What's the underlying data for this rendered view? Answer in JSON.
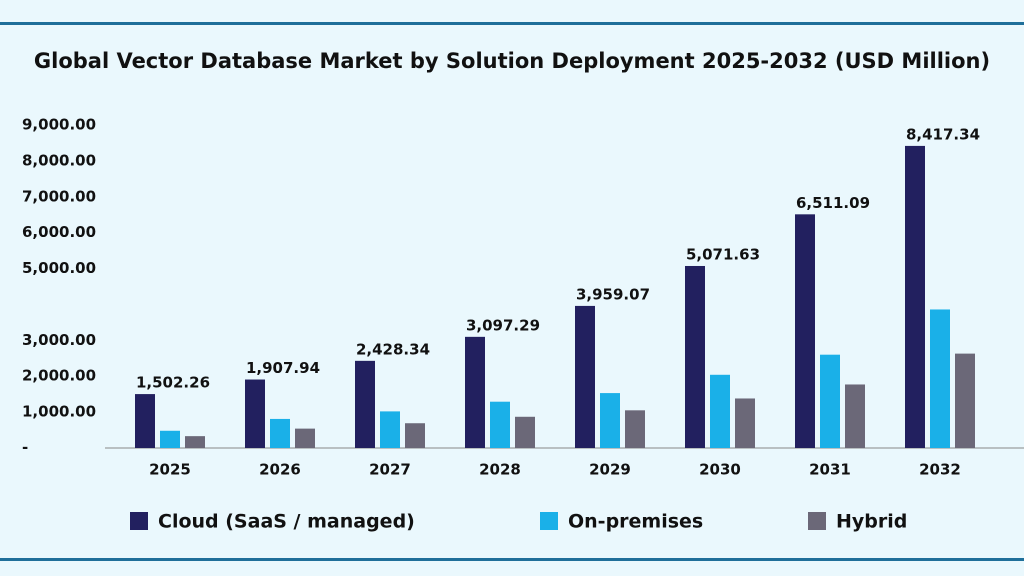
{
  "chart_data": {
    "type": "bar",
    "title": "Global Vector Database Market by Solution Deployment 2025-2032 (USD Million)",
    "categories": [
      "2025",
      "2026",
      "2027",
      "2028",
      "2029",
      "2030",
      "2031",
      "2032"
    ],
    "series": [
      {
        "name": "Cloud (SaaS / managed)",
        "color": "#22205f",
        "values": [
          1502.26,
          1907.94,
          2428.34,
          3097.29,
          3959.07,
          5071.63,
          6511.09,
          8417.34
        ],
        "value_labels": [
          "1,502.26",
          "1,907.94",
          "2,428.34",
          "3,097.29",
          "3,959.07",
          "5,071.63",
          "6,511.09",
          "8,417.34"
        ]
      },
      {
        "name": "On-premises",
        "color": "#1ab0e8",
        "values": [
          480,
          810,
          1020,
          1290,
          1530,
          2040,
          2600,
          3860
        ]
      },
      {
        "name": "Hybrid",
        "color": "#6b6878",
        "values": [
          330,
          540,
          690,
          870,
          1050,
          1380,
          1770,
          2630
        ]
      }
    ],
    "ylim": [
      0,
      9000
    ],
    "yticks": [
      {
        "value": 9000,
        "label": "9,000.00"
      },
      {
        "value": 8000,
        "label": "8,000.00"
      },
      {
        "value": 7000,
        "label": "7,000.00"
      },
      {
        "value": 6000,
        "label": "6,000.00"
      },
      {
        "value": 5000,
        "label": "5,000.00"
      },
      {
        "value": 3000,
        "label": "3,000.00"
      },
      {
        "value": 2000,
        "label": "2,000.00"
      },
      {
        "value": 1000,
        "label": "1,000.00"
      },
      {
        "value": 0,
        "label": "-"
      }
    ]
  }
}
